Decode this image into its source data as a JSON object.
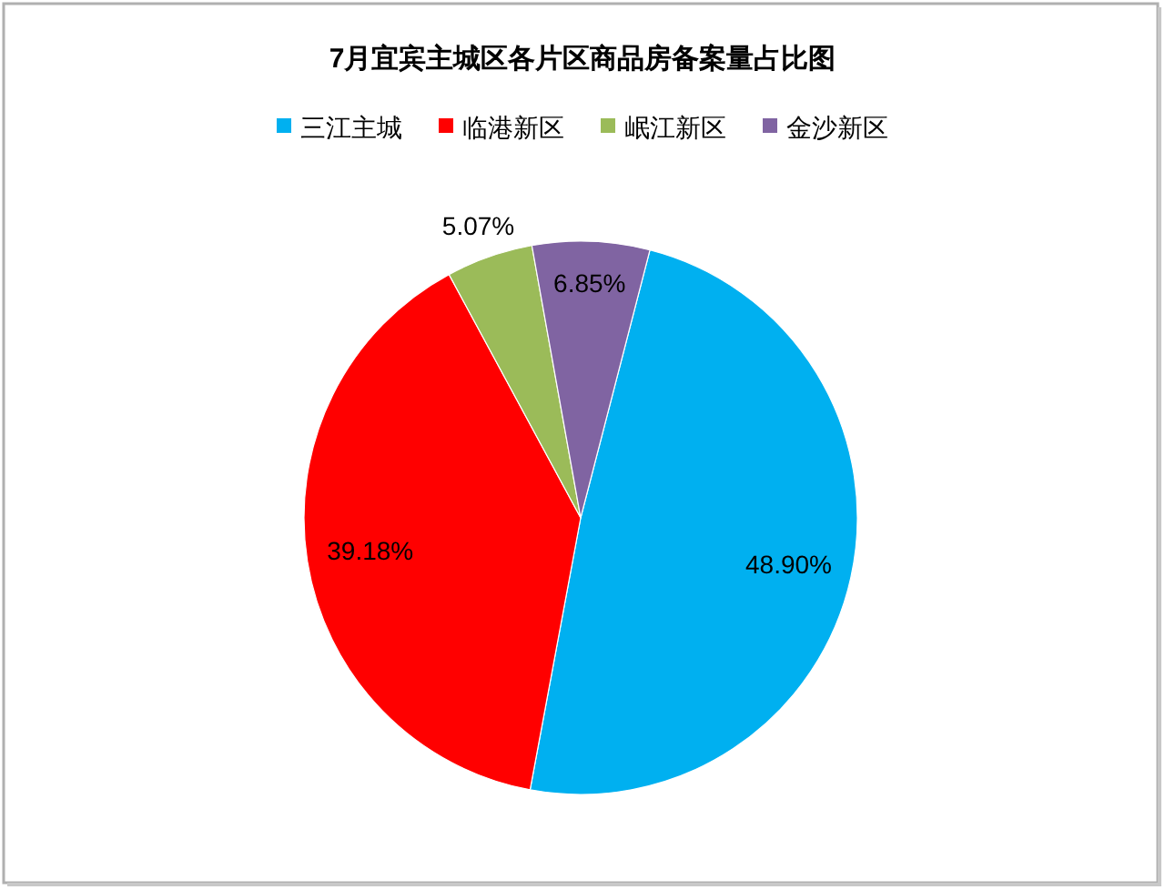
{
  "chart_data": {
    "type": "pie",
    "title": "7月宜宾主城区各片区商品房备案量占比图",
    "categories": [
      "三江主城",
      "临港新区",
      "岷江新区",
      "金沙新区"
    ],
    "values": [
      48.9,
      39.18,
      5.07,
      6.85
    ],
    "value_labels": [
      "48.90%",
      "39.18%",
      "5.07%",
      "6.85%"
    ],
    "colors": [
      "#00b0f0",
      "#ff0000",
      "#9bbb59",
      "#8064a2"
    ],
    "legend": "top"
  }
}
